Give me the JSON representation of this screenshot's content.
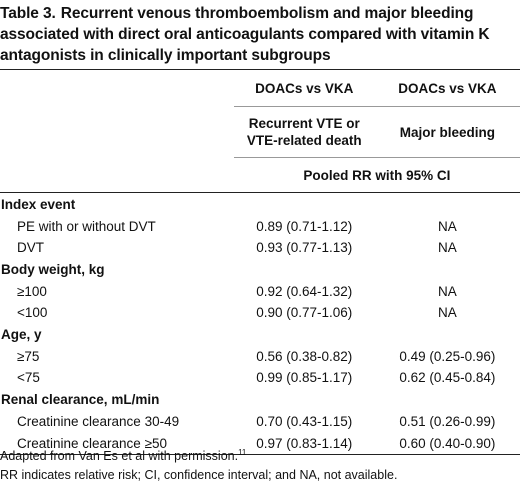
{
  "caption": {
    "number": "Table 3.",
    "title": "Recurrent venous thromboembolism and major bleeding associated with direct oral anticoagulants compared with vitamin K antagonists in clinically important subgroups"
  },
  "header": {
    "comparison_1": "DOACs vs VKA",
    "comparison_2": "DOACs vs VKA",
    "outcome_1": "Recurrent VTE or VTE-related death",
    "outcome_2": "Major bleeding",
    "measure": "Pooled RR with 95% CI"
  },
  "sections": [
    {
      "label": "Index event",
      "rows": [
        {
          "label": "PE with or without DVT",
          "vte": "0.89 (0.71-1.12)",
          "bleeding": "NA"
        },
        {
          "label": "DVT",
          "vte": "0.93 (0.77-1.13)",
          "bleeding": "NA"
        }
      ]
    },
    {
      "label": "Body weight, kg",
      "rows": [
        {
          "label": "≥100",
          "vte": "0.92 (0.64-1.32)",
          "bleeding": "NA"
        },
        {
          "label": "<100",
          "vte": "0.90 (0.77-1.06)",
          "bleeding": "NA"
        }
      ]
    },
    {
      "label": "Age, y",
      "rows": [
        {
          "label": "≥75",
          "vte": "0.56 (0.38-0.82)",
          "bleeding": "0.49 (0.25-0.96)"
        },
        {
          "label": "<75",
          "vte": "0.99 (0.85-1.17)",
          "bleeding": "0.62 (0.45-0.84)"
        }
      ]
    },
    {
      "label": "Renal clearance, mL/min",
      "rows": [
        {
          "label": "Creatinine clearance 30-49",
          "vte": "0.70 (0.43-1.15)",
          "bleeding": "0.51 (0.26-0.99)"
        },
        {
          "label": "Creatinine clearance ≥50",
          "vte": "0.97 (0.83-1.14)",
          "bleeding": "0.60 (0.40-0.90)"
        }
      ]
    }
  ],
  "footnotes": {
    "source": "Adapted from Van Es et al with permission.",
    "source_ref": "11",
    "abbreviations": "RR indicates relative risk; CI, confidence interval; and NA, not available."
  }
}
